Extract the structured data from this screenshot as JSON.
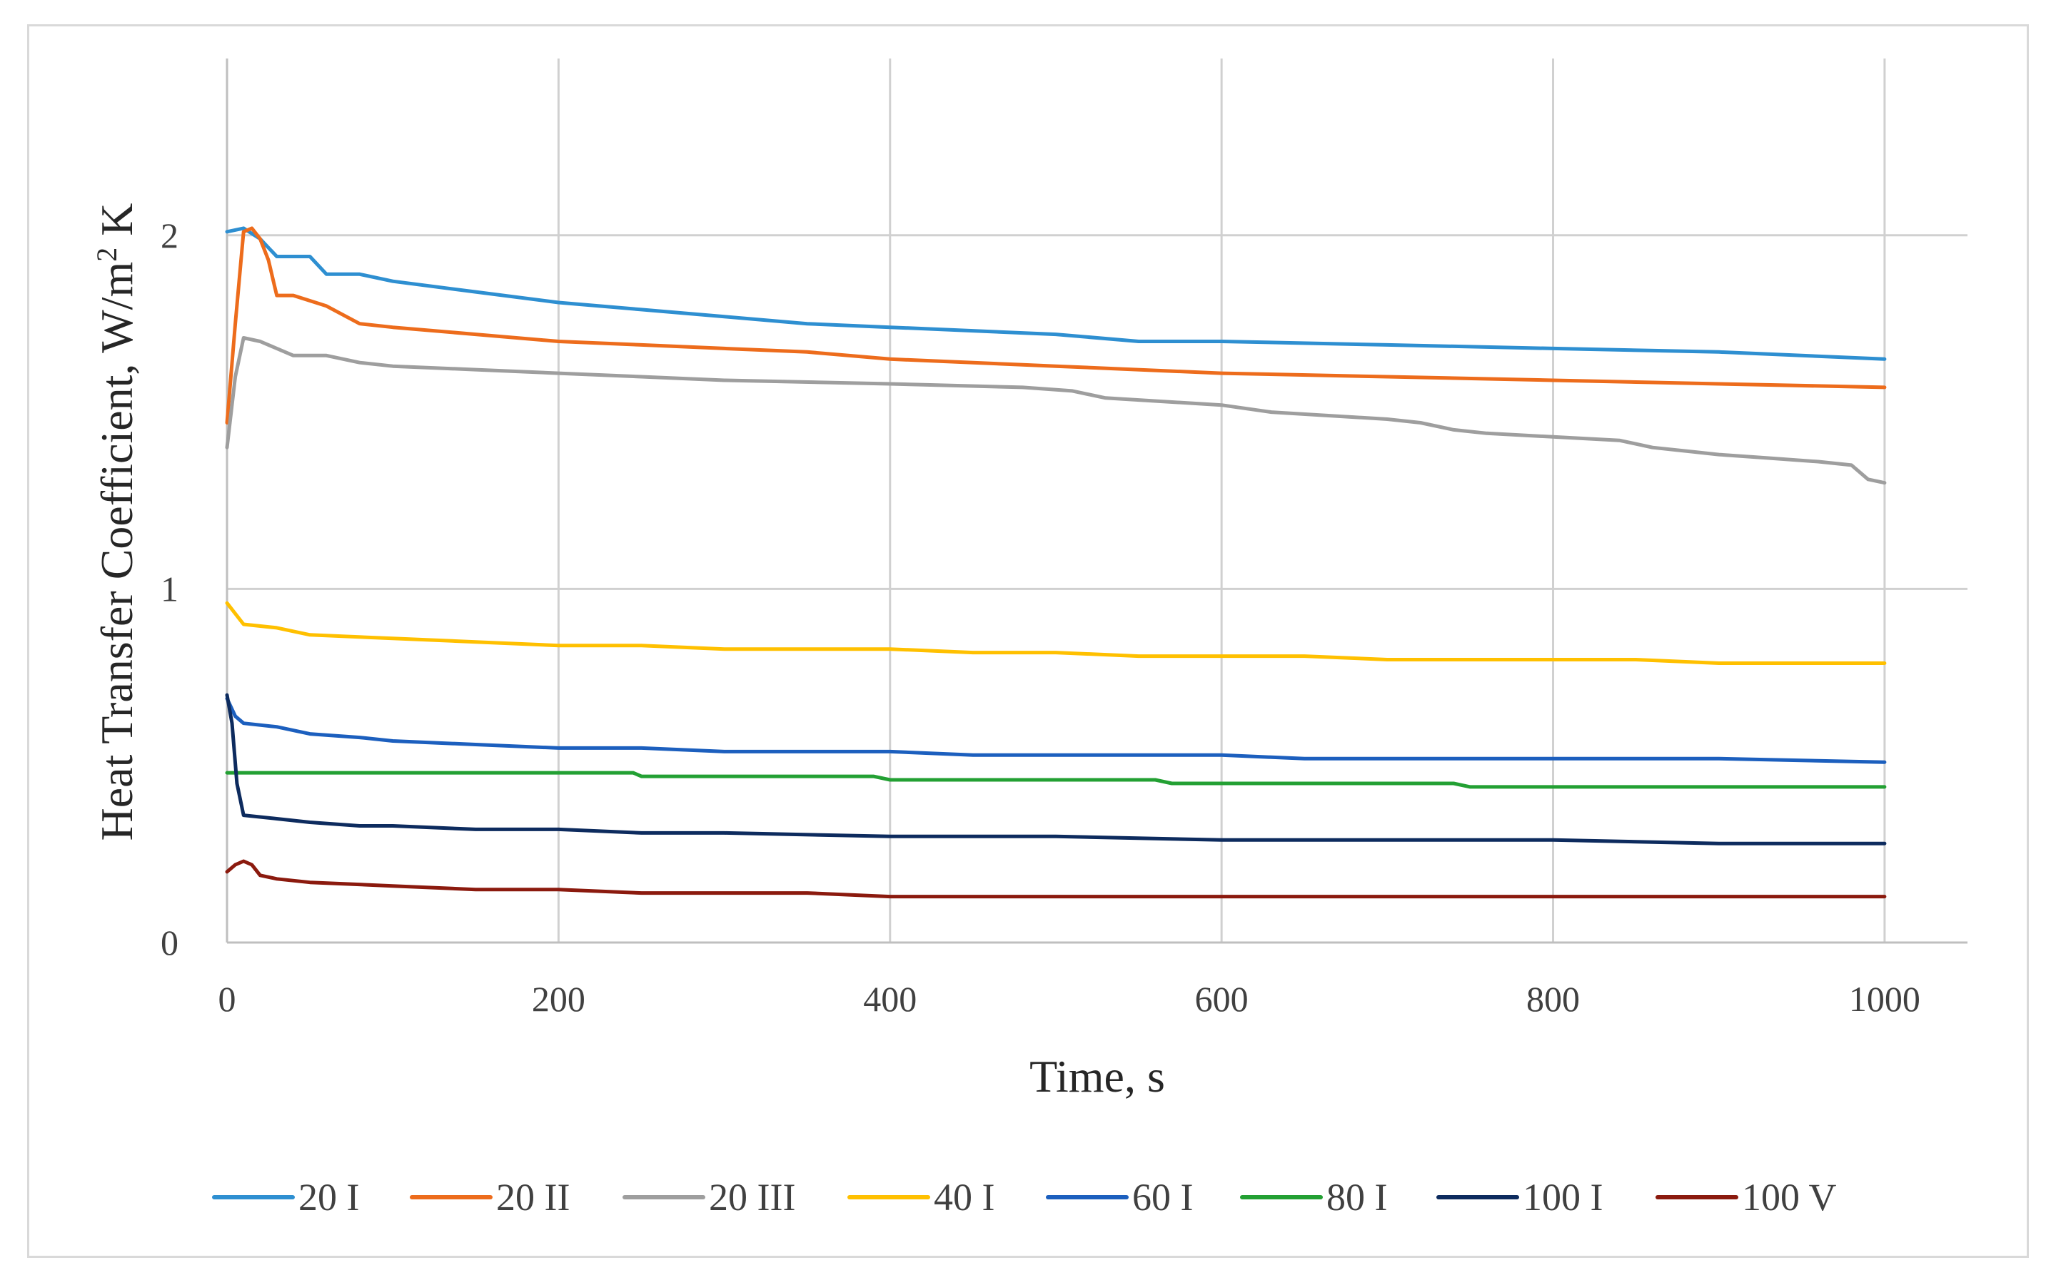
{
  "chart_data": {
    "type": "line",
    "title": "",
    "xlabel": "Time, s",
    "ylabel_main": "Heat Transfer Coefficient, W/m",
    "ylabel_sup": "2",
    "ylabel_tail": " K",
    "xlim": [
      0,
      1050
    ],
    "ylim": [
      0,
      2.5
    ],
    "x_ticks": [
      0,
      200,
      400,
      600,
      800,
      1000
    ],
    "x_tick_labels": [
      "0",
      "200",
      "400",
      "600",
      "800",
      "1000"
    ],
    "y_ticks": [
      0,
      1,
      2
    ],
    "y_tick_labels": [
      "0",
      "1",
      "2"
    ],
    "grid": true,
    "legend_position": "bottom",
    "series": [
      {
        "name": "20 I",
        "color": "#2e8fd1",
        "points": [
          [
            0,
            2.01
          ],
          [
            10,
            2.02
          ],
          [
            20,
            1.99
          ],
          [
            30,
            1.94
          ],
          [
            50,
            1.94
          ],
          [
            60,
            1.89
          ],
          [
            80,
            1.89
          ],
          [
            100,
            1.87
          ],
          [
            150,
            1.84
          ],
          [
            200,
            1.81
          ],
          [
            250,
            1.79
          ],
          [
            300,
            1.77
          ],
          [
            350,
            1.75
          ],
          [
            400,
            1.74
          ],
          [
            450,
            1.73
          ],
          [
            500,
            1.72
          ],
          [
            550,
            1.7
          ],
          [
            600,
            1.7
          ],
          [
            700,
            1.69
          ],
          [
            800,
            1.68
          ],
          [
            900,
            1.67
          ],
          [
            1000,
            1.65
          ]
        ]
      },
      {
        "name": "20 II",
        "color": "#ed6c1c",
        "points": [
          [
            0,
            1.47
          ],
          [
            5,
            1.75
          ],
          [
            10,
            2.01
          ],
          [
            15,
            2.02
          ],
          [
            20,
            1.99
          ],
          [
            25,
            1.93
          ],
          [
            30,
            1.83
          ],
          [
            40,
            1.83
          ],
          [
            60,
            1.8
          ],
          [
            80,
            1.75
          ],
          [
            100,
            1.74
          ],
          [
            150,
            1.72
          ],
          [
            200,
            1.7
          ],
          [
            250,
            1.69
          ],
          [
            300,
            1.68
          ],
          [
            350,
            1.67
          ],
          [
            400,
            1.65
          ],
          [
            500,
            1.63
          ],
          [
            600,
            1.61
          ],
          [
            700,
            1.6
          ],
          [
            800,
            1.59
          ],
          [
            900,
            1.58
          ],
          [
            1000,
            1.57
          ]
        ]
      },
      {
        "name": "20 III",
        "color": "#9e9e9e",
        "points": [
          [
            0,
            1.4
          ],
          [
            5,
            1.6
          ],
          [
            10,
            1.71
          ],
          [
            20,
            1.7
          ],
          [
            40,
            1.66
          ],
          [
            60,
            1.66
          ],
          [
            80,
            1.64
          ],
          [
            100,
            1.63
          ],
          [
            150,
            1.62
          ],
          [
            200,
            1.61
          ],
          [
            250,
            1.6
          ],
          [
            300,
            1.59
          ],
          [
            400,
            1.58
          ],
          [
            480,
            1.57
          ],
          [
            510,
            1.56
          ],
          [
            530,
            1.54
          ],
          [
            600,
            1.52
          ],
          [
            630,
            1.5
          ],
          [
            700,
            1.48
          ],
          [
            720,
            1.47
          ],
          [
            740,
            1.45
          ],
          [
            760,
            1.44
          ],
          [
            800,
            1.43
          ],
          [
            840,
            1.42
          ],
          [
            860,
            1.4
          ],
          [
            880,
            1.39
          ],
          [
            900,
            1.38
          ],
          [
            930,
            1.37
          ],
          [
            960,
            1.36
          ],
          [
            980,
            1.35
          ],
          [
            990,
            1.31
          ],
          [
            1000,
            1.3
          ]
        ]
      },
      {
        "name": "40 I",
        "color": "#ffc000",
        "points": [
          [
            0,
            0.96
          ],
          [
            10,
            0.9
          ],
          [
            30,
            0.89
          ],
          [
            50,
            0.87
          ],
          [
            100,
            0.86
          ],
          [
            150,
            0.85
          ],
          [
            200,
            0.84
          ],
          [
            250,
            0.84
          ],
          [
            300,
            0.83
          ],
          [
            350,
            0.83
          ],
          [
            400,
            0.83
          ],
          [
            450,
            0.82
          ],
          [
            500,
            0.82
          ],
          [
            550,
            0.81
          ],
          [
            600,
            0.81
          ],
          [
            650,
            0.81
          ],
          [
            700,
            0.8
          ],
          [
            750,
            0.8
          ],
          [
            800,
            0.8
          ],
          [
            850,
            0.8
          ],
          [
            900,
            0.79
          ],
          [
            950,
            0.79
          ],
          [
            1000,
            0.79
          ]
        ]
      },
      {
        "name": "60 I",
        "color": "#1c5fbe",
        "points": [
          [
            0,
            0.69
          ],
          [
            5,
            0.64
          ],
          [
            10,
            0.62
          ],
          [
            30,
            0.61
          ],
          [
            50,
            0.59
          ],
          [
            80,
            0.58
          ],
          [
            100,
            0.57
          ],
          [
            150,
            0.56
          ],
          [
            200,
            0.55
          ],
          [
            250,
            0.55
          ],
          [
            300,
            0.54
          ],
          [
            350,
            0.54
          ],
          [
            400,
            0.54
          ],
          [
            450,
            0.53
          ],
          [
            500,
            0.53
          ],
          [
            550,
            0.53
          ],
          [
            600,
            0.53
          ],
          [
            650,
            0.52
          ],
          [
            700,
            0.52
          ],
          [
            800,
            0.52
          ],
          [
            900,
            0.52
          ],
          [
            1000,
            0.51
          ]
        ]
      },
      {
        "name": "80 I",
        "color": "#23a033",
        "points": [
          [
            0,
            0.48
          ],
          [
            245,
            0.48
          ],
          [
            250,
            0.47
          ],
          [
            390,
            0.47
          ],
          [
            400,
            0.46
          ],
          [
            560,
            0.46
          ],
          [
            570,
            0.45
          ],
          [
            740,
            0.45
          ],
          [
            750,
            0.44
          ],
          [
            1000,
            0.44
          ]
        ]
      },
      {
        "name": "100 I",
        "color": "#0d2b5e",
        "points": [
          [
            0,
            0.7
          ],
          [
            3,
            0.62
          ],
          [
            6,
            0.45
          ],
          [
            10,
            0.36
          ],
          [
            30,
            0.35
          ],
          [
            50,
            0.34
          ],
          [
            80,
            0.33
          ],
          [
            100,
            0.33
          ],
          [
            150,
            0.32
          ],
          [
            200,
            0.32
          ],
          [
            250,
            0.31
          ],
          [
            300,
            0.31
          ],
          [
            400,
            0.3
          ],
          [
            500,
            0.3
          ],
          [
            600,
            0.29
          ],
          [
            700,
            0.29
          ],
          [
            800,
            0.29
          ],
          [
            900,
            0.28
          ],
          [
            1000,
            0.28
          ]
        ]
      },
      {
        "name": "100 V",
        "color": "#8b1a0e",
        "points": [
          [
            0,
            0.2
          ],
          [
            5,
            0.22
          ],
          [
            10,
            0.23
          ],
          [
            15,
            0.22
          ],
          [
            20,
            0.19
          ],
          [
            30,
            0.18
          ],
          [
            50,
            0.17
          ],
          [
            100,
            0.16
          ],
          [
            150,
            0.15
          ],
          [
            200,
            0.15
          ],
          [
            250,
            0.14
          ],
          [
            300,
            0.14
          ],
          [
            350,
            0.14
          ],
          [
            400,
            0.13
          ],
          [
            1000,
            0.13
          ]
        ]
      }
    ]
  }
}
